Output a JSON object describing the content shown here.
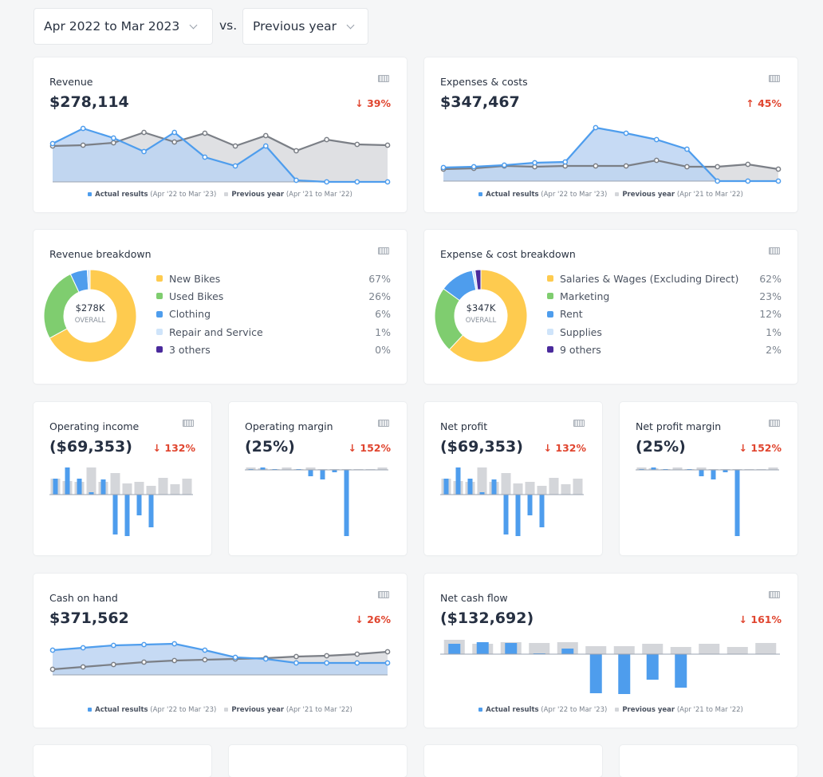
{
  "filters": {
    "period": "Apr 2022 to Mar 2023",
    "vs_label": "vs.",
    "comparison": "Previous year"
  },
  "colors": {
    "actual": "#4e9ded",
    "actual_fill": "#bcd4f2",
    "previous": "#7b7f86",
    "previous_fill": "#dfe0e3",
    "previous_bar": "#d4d6da",
    "down": "#e0452f",
    "yellow": "#fecb4f",
    "green": "#7fcd6f",
    "blue": "#4e9ded",
    "light_blue": "#cfe4fa",
    "purple": "#4a2a9c"
  },
  "legend": {
    "actual_label": "Actual results",
    "actual_range": "(Apr '22 to Mar '23)",
    "previous_label": "Previous year",
    "previous_range": "(Apr '21 to Mar '22)"
  },
  "cards": {
    "revenue": {
      "title": "Revenue",
      "value": "$278,114",
      "delta": "39%",
      "direction": "down"
    },
    "expenses": {
      "title": "Expenses & costs",
      "value": "$347,467",
      "delta": "45%",
      "direction": "up"
    },
    "revenue_breakdown": {
      "title": "Revenue breakdown",
      "center_value": "$278K",
      "center_label": "OVERALL"
    },
    "expense_breakdown": {
      "title": "Expense & cost breakdown",
      "center_value": "$347K",
      "center_label": "OVERALL"
    },
    "operating_income": {
      "title": "Operating income",
      "value": "($69,353)",
      "delta": "132%",
      "direction": "down"
    },
    "operating_margin": {
      "title": "Operating margin",
      "value": "(25%)",
      "delta": "152%",
      "direction": "down"
    },
    "net_profit": {
      "title": "Net profit",
      "value": "($69,353)",
      "delta": "132%",
      "direction": "down"
    },
    "net_profit_margin": {
      "title": "Net profit margin",
      "value": "(25%)",
      "delta": "152%",
      "direction": "down"
    },
    "cash_on_hand": {
      "title": "Cash on hand",
      "value": "$371,562",
      "delta": "26%",
      "direction": "down"
    },
    "net_cash_flow": {
      "title": "Net cash flow",
      "value": "($132,692)",
      "delta": "161%",
      "direction": "down"
    }
  },
  "chart_data": [
    {
      "id": "revenue",
      "type": "area",
      "series": [
        {
          "name": "Actual results",
          "values": [
            48,
            67,
            55,
            38,
            62,
            31,
            20,
            45,
            2,
            0,
            0,
            0
          ]
        },
        {
          "name": "Previous year",
          "values": [
            45,
            46,
            49,
            62,
            50,
            61,
            45,
            58,
            39,
            53,
            47,
            46
          ]
        }
      ]
    },
    {
      "id": "expenses",
      "type": "area",
      "series": [
        {
          "name": "Actual results",
          "values": [
            17,
            18,
            20,
            23,
            24,
            67,
            60,
            52,
            40,
            0,
            0,
            0
          ]
        },
        {
          "name": "Previous year",
          "values": [
            15,
            16,
            19,
            18,
            19,
            19,
            19,
            26,
            18,
            18,
            21,
            15
          ]
        }
      ]
    },
    {
      "id": "revenue_breakdown",
      "type": "pie",
      "labels": [
        "New Bikes",
        "Used Bikes",
        "Clothing",
        "Repair and Service",
        "3 others"
      ],
      "values": [
        67,
        26,
        6,
        1,
        0
      ],
      "display": [
        "67%",
        "26%",
        "6%",
        "1%",
        "0%"
      ]
    },
    {
      "id": "expense_breakdown",
      "type": "pie",
      "labels": [
        "Salaries & Wages (Excluding Direct)",
        "Marketing",
        "Rent",
        "Supplies",
        "9 others"
      ],
      "values": [
        62,
        23,
        12,
        1,
        2
      ],
      "display": [
        "62%",
        "23%",
        "12%",
        "1%",
        "2%"
      ]
    },
    {
      "id": "operating_income",
      "type": "bar",
      "series": [
        {
          "name": "Actual results",
          "values": [
            20,
            34,
            20,
            3,
            19,
            -50,
            -52,
            -26,
            -41,
            0,
            0,
            0
          ]
        },
        {
          "name": "Previous year",
          "values": [
            20,
            17,
            16,
            34,
            16,
            27,
            14,
            16,
            11,
            21,
            13,
            20
          ]
        }
      ]
    },
    {
      "id": "operating_margin",
      "type": "bar",
      "series": [
        {
          "name": "Actual results",
          "values": [
            1,
            3,
            1,
            0,
            1,
            -8,
            -12,
            -3,
            -83,
            0,
            0,
            0
          ]
        },
        {
          "name": "Previous year",
          "values": [
            3,
            2,
            1,
            3,
            1,
            3,
            1,
            1,
            1,
            1,
            1,
            3
          ]
        }
      ]
    },
    {
      "id": "net_profit",
      "type": "bar",
      "series": [
        {
          "name": "Actual results",
          "values": [
            20,
            34,
            20,
            3,
            19,
            -50,
            -52,
            -26,
            -41,
            0,
            0,
            0
          ]
        },
        {
          "name": "Previous year",
          "values": [
            20,
            17,
            16,
            34,
            16,
            27,
            14,
            16,
            11,
            21,
            13,
            20
          ]
        }
      ]
    },
    {
      "id": "net_profit_margin",
      "type": "bar",
      "series": [
        {
          "name": "Actual results",
          "values": [
            1,
            3,
            1,
            0,
            1,
            -8,
            -12,
            -3,
            -83,
            0,
            0,
            0
          ]
        },
        {
          "name": "Previous year",
          "values": [
            3,
            2,
            1,
            3,
            1,
            3,
            1,
            1,
            1,
            1,
            1,
            3
          ]
        }
      ]
    },
    {
      "id": "cash_on_hand",
      "type": "area",
      "series": [
        {
          "name": "Actual results",
          "values": [
            31,
            34,
            37,
            38,
            39,
            31,
            22,
            20,
            15,
            15,
            15,
            15
          ]
        },
        {
          "name": "Previous year",
          "values": [
            7,
            10,
            13,
            16,
            18,
            19,
            20,
            21,
            23,
            24,
            26,
            29
          ]
        }
      ]
    },
    {
      "id": "net_cash_flow",
      "type": "bar",
      "series": [
        {
          "name": "Actual results",
          "values": [
            13,
            15,
            14,
            1,
            7,
            -49,
            -50,
            -32,
            -42,
            0,
            0,
            0
          ]
        },
        {
          "name": "Previous year",
          "values": [
            18,
            13,
            15,
            14,
            15,
            10,
            10,
            13,
            9,
            13,
            9,
            14
          ]
        }
      ]
    }
  ]
}
